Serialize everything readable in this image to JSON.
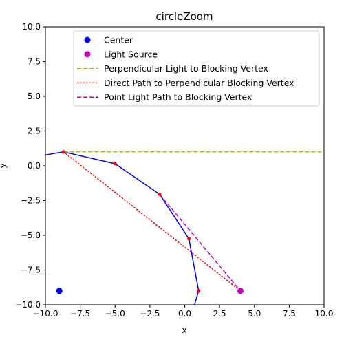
{
  "chart_data": {
    "type": "line",
    "title": "circleZoom",
    "xlabel": "x",
    "ylabel": "y",
    "xlim": [
      -10,
      10
    ],
    "ylim": [
      -10,
      10
    ],
    "xticks": [
      -10.0,
      -7.5,
      -5.0,
      -2.5,
      0.0,
      2.5,
      5.0,
      7.5,
      10.0
    ],
    "yticks": [
      -10.0,
      -7.5,
      -5.0,
      -2.5,
      0.0,
      2.5,
      5.0,
      7.5,
      10.0
    ],
    "xtick_labels": [
      "−10.0",
      "−7.5",
      "−5.0",
      "−2.5",
      "0.0",
      "2.5",
      "5.0",
      "7.5",
      "10.0"
    ],
    "ytick_labels": [
      "−10.0",
      "−7.5",
      "−5.0",
      "−2.5",
      "0.0",
      "2.5",
      "5.0",
      "7.5",
      "10.0"
    ],
    "grid": false,
    "legend_position": "top-right",
    "circle_curve": {
      "color": "#0000ff",
      "x": [
        -10.0,
        -8.7,
        -5.0,
        -1.8,
        0.3,
        1.0,
        0.7
      ],
      "y": [
        0.78,
        1.0,
        0.15,
        -2.05,
        -5.25,
        -9.0,
        -10.0
      ]
    },
    "vertices": {
      "color": "#ff0000",
      "x": [
        -8.7,
        -5.0,
        -1.8,
        0.3,
        1.0
      ],
      "y": [
        1.0,
        0.15,
        -2.05,
        -5.25,
        -9.0
      ]
    },
    "series": [
      {
        "name": "Center",
        "style": "marker",
        "color": "#0000ff",
        "x": [
          -9.0
        ],
        "y": [
          -9.0
        ]
      },
      {
        "name": "Light Source",
        "style": "marker",
        "color": "#bf00bf",
        "x": [
          4.0
        ],
        "y": [
          -9.0
        ]
      },
      {
        "name": "Perpendicular Light to Blocking Vertex",
        "style": "dashed",
        "color": "#bfbf00",
        "x": [
          -8.7,
          10.0
        ],
        "y": [
          1.0,
          1.0
        ]
      },
      {
        "name": "Direct Path to Perpendicular Blocking Vertex",
        "style": "dotted",
        "color": "#ff0000",
        "x": [
          -8.7,
          4.0
        ],
        "y": [
          1.0,
          -9.0
        ]
      },
      {
        "name": "Point Light Path to Blocking Vertex",
        "style": "dashed",
        "color": "#bf00bf",
        "x": [
          -1.8,
          4.0
        ],
        "y": [
          -2.05,
          -9.0
        ]
      }
    ]
  }
}
